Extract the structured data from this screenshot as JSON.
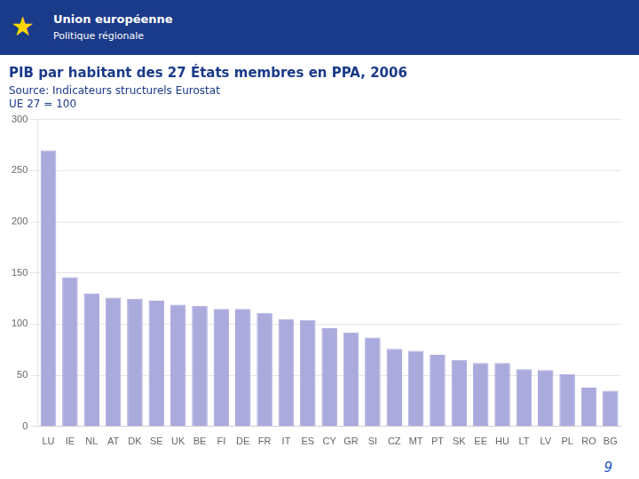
{
  "chart_data": {
    "type": "bar",
    "title": "PIB par habitant des 27 États membres en PPA, 2006",
    "subtitle": [
      "Source: Indicateurs structurels Eurostat",
      "UE 27 = 100"
    ],
    "annotations": [
      "★",
      "Union européenne",
      "Politique régionale",
      "9"
    ],
    "categories": [
      "LU",
      "IE",
      "NL",
      "AT",
      "DK",
      "SE",
      "UK",
      "BE",
      "FI",
      "DE",
      "FR",
      "IT",
      "ES",
      "CY",
      "GR",
      "SI",
      "CZ",
      "MT",
      "PT",
      "SK",
      "EE",
      "HU",
      "LT",
      "LV",
      "PL",
      "RO",
      "BG"
    ],
    "values": [
      270,
      146,
      130,
      126,
      125,
      123,
      119,
      118,
      115,
      115,
      111,
      105,
      104,
      96,
      92,
      87,
      76,
      74,
      70,
      65,
      62,
      62,
      56,
      55,
      51,
      38,
      35
    ],
    "color": "#aaaadd",
    "ylim": [
      0,
      300
    ],
    "yticks": [
      0,
      50,
      100,
      150,
      200,
      250,
      300
    ],
    "grid": true
  }
}
